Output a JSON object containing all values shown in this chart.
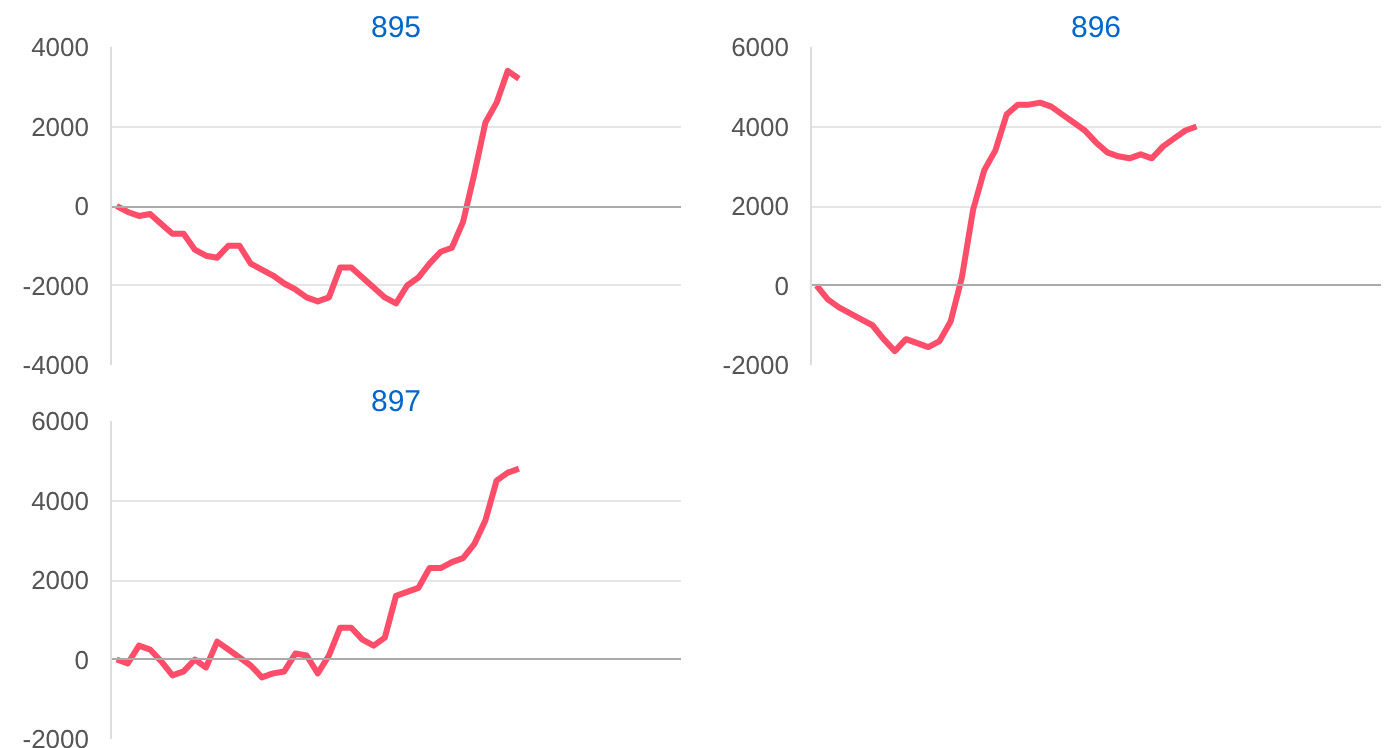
{
  "chart_data": [
    {
      "type": "line",
      "title": "895",
      "categories": [
        null,
        null,
        null,
        null,
        null,
        null,
        null,
        null,
        null,
        null,
        null,
        null,
        null,
        null,
        null,
        null,
        null,
        null,
        null,
        null,
        null,
        null,
        null,
        null,
        null,
        null,
        null,
        null,
        null,
        null,
        null,
        null,
        null,
        null,
        null,
        null,
        null,
        null,
        null,
        null,
        null,
        null,
        null,
        null,
        null,
        null,
        null,
        null,
        null,
        null,
        null
      ],
      "series": [
        {
          "color": "#ff4d6a",
          "values": [
            0,
            -150,
            -250,
            -200,
            -450,
            -700,
            -700,
            -1100,
            -1250,
            -1300,
            -1000,
            -1000,
            -1450,
            -1600,
            -1750,
            -1950,
            -2100,
            -2300,
            -2400,
            -2300,
            -1550,
            -1550,
            -1800,
            -2050,
            -2300,
            -2450,
            -2000,
            -1800,
            -1450,
            -1150,
            -1050,
            -400,
            800,
            2100,
            2600,
            3400,
            3200,
            null,
            null,
            null,
            null,
            null,
            null,
            null,
            null,
            null,
            null,
            null,
            null,
            null,
            null
          ]
        }
      ],
      "ylim": [
        -4000,
        4000
      ],
      "yticks": [
        -4000,
        -2000,
        0,
        2000,
        4000
      ],
      "grid": "y",
      "tick_labels": "y",
      "marker": "none",
      "line_style": "solid"
    },
    {
      "type": "line",
      "title": "896",
      "categories": [
        null,
        null,
        null,
        null,
        null,
        null,
        null,
        null,
        null,
        null,
        null,
        null,
        null,
        null,
        null,
        null,
        null,
        null,
        null,
        null,
        null,
        null,
        null,
        null,
        null,
        null,
        null,
        null,
        null,
        null,
        null,
        null,
        null,
        null,
        null,
        null,
        null,
        null,
        null,
        null,
        null,
        null,
        null,
        null,
        null,
        null,
        null,
        null,
        null,
        null,
        null
      ],
      "series": [
        {
          "color": "#ff4d6a",
          "values": [
            0,
            -350,
            -550,
            -700,
            -850,
            -1000,
            -1350,
            -1650,
            -1350,
            -1450,
            -1550,
            -1400,
            -900,
            200,
            1900,
            2900,
            3400,
            4300,
            4550,
            4550,
            4600,
            4500,
            4300,
            4100,
            3900,
            3600,
            3350,
            3250,
            3200,
            3300,
            3200,
            3500,
            3700,
            3900,
            4000,
            null,
            null,
            null,
            null,
            null,
            null,
            null,
            null,
            null,
            null,
            null,
            null,
            null,
            null,
            null,
            null
          ]
        }
      ],
      "ylim": [
        -2000,
        6000
      ],
      "yticks": [
        -2000,
        0,
        2000,
        4000,
        6000
      ],
      "grid": "y",
      "tick_labels": "y",
      "marker": "none",
      "line_style": "solid"
    },
    {
      "type": "line",
      "title": "897",
      "categories": [
        null,
        null,
        null,
        null,
        null,
        null,
        null,
        null,
        null,
        null,
        null,
        null,
        null,
        null,
        null,
        null,
        null,
        null,
        null,
        null,
        null,
        null,
        null,
        null,
        null,
        null,
        null,
        null,
        null,
        null,
        null,
        null,
        null,
        null,
        null,
        null,
        null,
        null,
        null,
        null,
        null,
        null,
        null,
        null,
        null,
        null,
        null,
        null,
        null,
        null,
        null
      ],
      "series": [
        {
          "color": "#ff4d6a",
          "values": [
            0,
            -100,
            350,
            250,
            -50,
            -400,
            -300,
            0,
            -200,
            450,
            250,
            50,
            -150,
            -450,
            -350,
            -300,
            150,
            100,
            -350,
            100,
            800,
            800,
            500,
            350,
            550,
            1600,
            1700,
            1800,
            2300,
            2300,
            2450,
            2550,
            2900,
            3500,
            4500,
            4700,
            4800,
            null,
            null,
            null,
            null,
            null,
            null,
            null,
            null,
            null,
            null,
            null,
            null,
            null,
            null
          ]
        }
      ],
      "ylim": [
        -2000,
        6000
      ],
      "yticks": [
        -2000,
        0,
        2000,
        4000,
        6000
      ],
      "grid": "y",
      "tick_labels": "y",
      "marker": "none",
      "line_style": "solid"
    }
  ]
}
